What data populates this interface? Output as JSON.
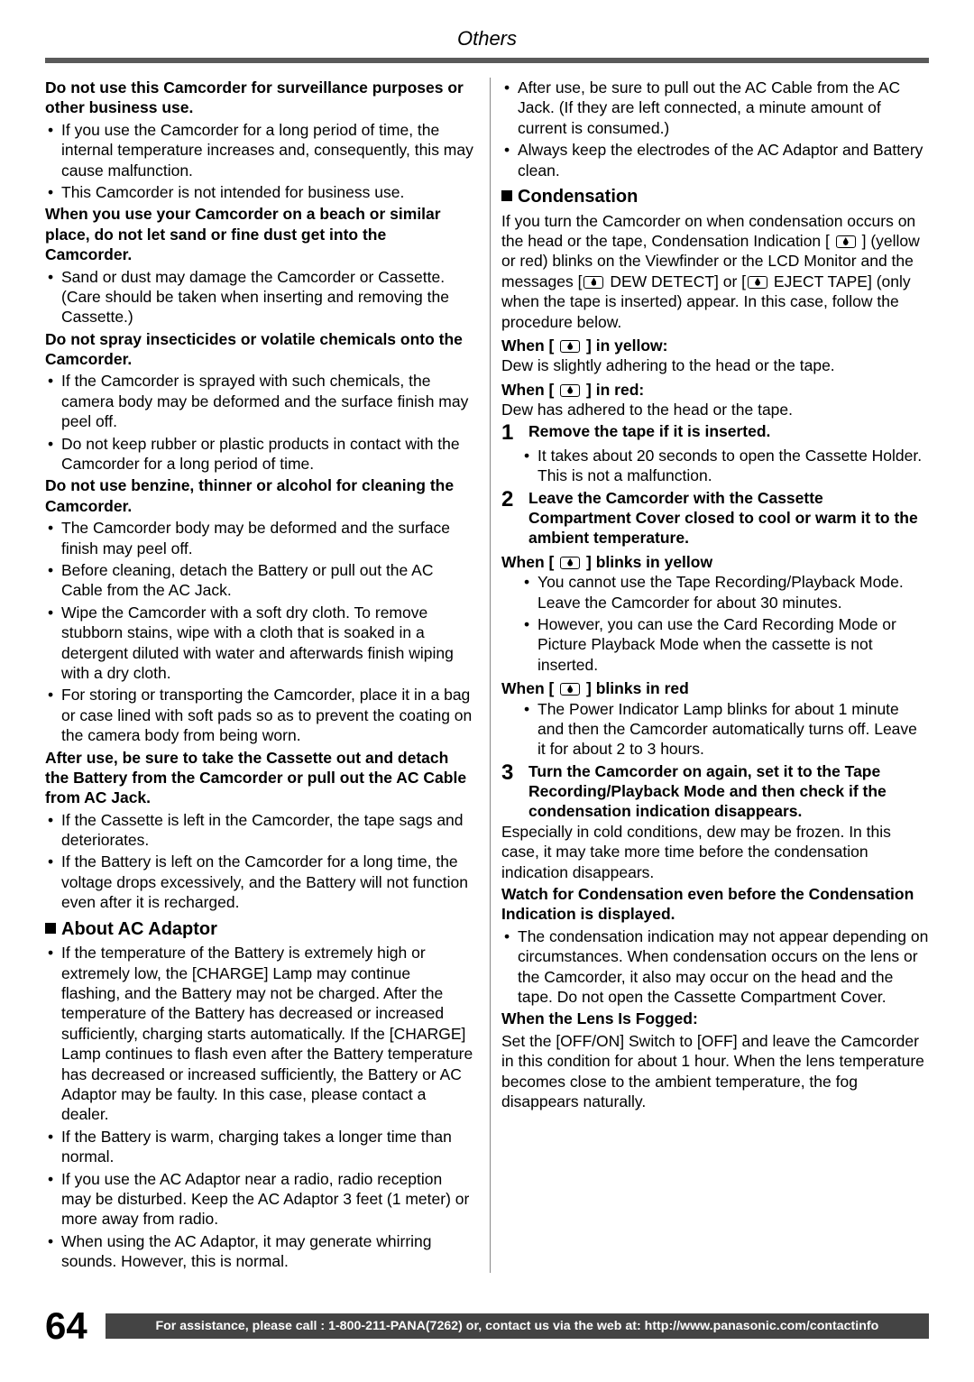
{
  "header": {
    "title": "Others"
  },
  "left": {
    "h1": "Do not use this Camcorder for surveillance purposes or other business use.",
    "b1": [
      "If you use the Camcorder for a long period of time, the internal temperature increases and, consequently, this may cause malfunction.",
      "This Camcorder is not intended for business use."
    ],
    "h2": "When you use your Camcorder on a beach or similar place, do not let sand or fine dust get into the Camcorder.",
    "b2": [
      "Sand or dust may damage the Camcorder or Cassette. (Care should be taken when inserting and removing the Cassette.)"
    ],
    "h3": "Do not spray insecticides or volatile chemicals onto the Camcorder.",
    "b3": [
      "If the Camcorder is sprayed with such chemicals, the camera body may be deformed and the surface finish may peel off.",
      "Do not keep rubber or plastic products in contact with the Camcorder for a long period of time."
    ],
    "h4": "Do not use benzine, thinner or alcohol for cleaning the Camcorder.",
    "b4": [
      "The Camcorder body may be deformed and the surface finish may peel off.",
      "Before cleaning, detach the Battery or pull out the AC Cable from the AC Jack.",
      "Wipe the Camcorder with a soft dry cloth. To remove stubborn stains, wipe with a cloth that is soaked in a detergent diluted with water and afterwards finish wiping with a dry cloth.",
      "For storing or transporting the Camcorder, place it in a bag or case lined with soft pads so as to prevent the coating on the camera body from being worn."
    ],
    "h5": "After use, be sure to take the Cassette out and detach the Battery from the Camcorder or pull out the AC Cable from AC Jack.",
    "b5": [
      "If the Cassette is left in the Camcorder, the tape sags and deteriorates.",
      "If the Battery is left on the Camcorder for a long time, the voltage drops excessively, and the Battery will not function even after it is recharged."
    ],
    "sec_ac": "About AC Adaptor",
    "b6": [
      "If the temperature of the Battery is extremely high or extremely low, the [CHARGE] Lamp may continue flashing, and the Battery may not be charged. After the temperature of the Battery has decreased or increased sufficiently, charging starts automatically. If the [CHARGE] Lamp continues to flash even after the Battery temperature has decreased or increased sufficiently, the Battery or AC Adaptor may be faulty. In this case, please contact a dealer.",
      "If the Battery is warm, charging takes a longer time than normal.",
      "If you use the AC Adaptor near a radio, radio reception may be disturbed. Keep the AC Adaptor 3 feet (1 meter) or more away from radio.",
      "When using the AC Adaptor, it may generate whirring sounds. However, this is normal."
    ]
  },
  "right": {
    "b0": [
      "After use, be sure to pull out the AC Cable from the AC Jack. (If they are left connected, a minute amount of current is consumed.)",
      "Always keep the electrodes of the AC Adaptor and Battery clean."
    ],
    "sec_cond": "Condensation",
    "cond_intro_a": "If you turn the Camcorder on when condensation occurs on the head or the tape, Condensation Indication [ ",
    "cond_intro_b": " ] (yellow or red) blinks on the Viewfinder or the LCD Monitor and the messages [",
    "cond_intro_c": " DEW DETECT] or [",
    "cond_intro_d": " EJECT TAPE] (only when the tape is inserted) appear. In this case, follow the procedure below.",
    "wy_pre": "When [ ",
    "wy_post": " ] in yellow:",
    "wy_text": "Dew is slightly adhering to the head or the tape.",
    "wr_pre": "When [ ",
    "wr_post": " ] in red:",
    "wr_text": "Dew has adhered to the head or the tape.",
    "step1_n": "1",
    "step1_t": "Remove the tape if it is inserted.",
    "step1_sub": [
      "It takes about 20 seconds to open the Cassette Holder. This is not a malfunction."
    ],
    "step2_n": "2",
    "step2_t": "Leave the Camcorder with the Cassette Compartment Cover closed to cool or warm it to the ambient temperature.",
    "wby_pre": "When [ ",
    "wby_post": " ] blinks in yellow",
    "wby_sub": [
      "You cannot use the Tape Recording/Playback Mode. Leave the Camcorder for about 30 minutes.",
      "However, you can use the Card Recording Mode or Picture Playback Mode when the cassette is not inserted."
    ],
    "wbr_pre": "When [ ",
    "wbr_post": " ] blinks in red",
    "wbr_sub": [
      "The Power Indicator Lamp blinks for about 1 minute and then the Camcorder automatically turns off. Leave it for about 2 to 3 hours."
    ],
    "step3_n": "3",
    "step3_t": "Turn the Camcorder on again, set it to the Tape Recording/Playback Mode and then check if the condensation indication disappears.",
    "cond_after": "Especially in cold conditions, dew may be frozen. In this case, it may take more time before the condensation indication disappears.",
    "watch_h": "Watch for Condensation even before the Condensation Indication is displayed.",
    "watch_b": [
      "The condensation indication may not appear depending on circumstances. When condensation occurs on the lens or the Camcorder, it also may occur on the head and the tape. Do not open the Cassette Compartment Cover."
    ],
    "lens_h": "When the Lens Is Fogged:",
    "lens_t": "Set the [OFF/ON] Switch to [OFF] and leave the Camcorder in this condition for about 1 hour. When the lens temperature becomes close to the ambient temperature, the fog disappears naturally."
  },
  "footer": {
    "page": "64",
    "bar": "For assistance, please call : 1-800-211-PANA(7262) or, contact us via the web at: http://www.panasonic.com/contactinfo"
  }
}
